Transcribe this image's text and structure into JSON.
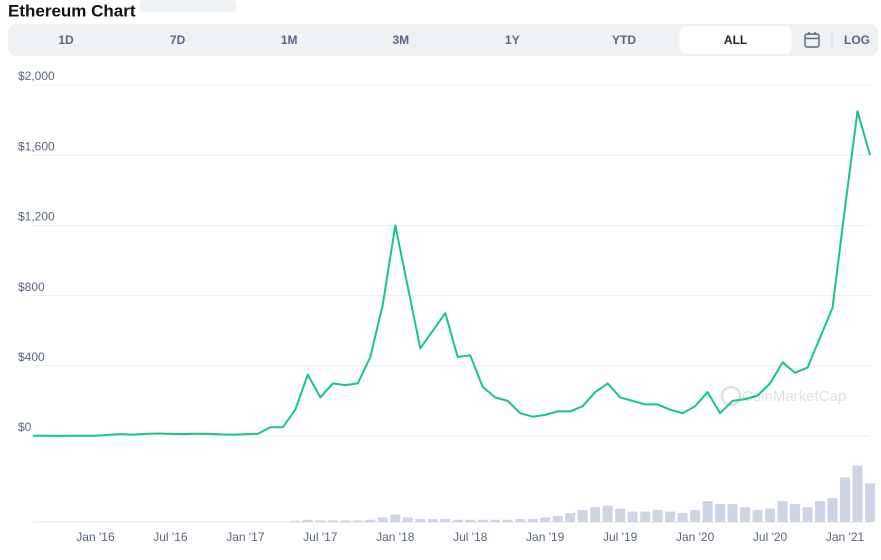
{
  "chart_data": {
    "type": "line",
    "title": "Ethereum Chart",
    "toolbar": {
      "buttons": [
        "1D",
        "7D",
        "1M",
        "3M",
        "1Y",
        "YTD",
        "ALL"
      ],
      "selected": 6,
      "log": "LOG"
    },
    "watermark": "CoinMarketCap",
    "x": [
      "2015-08",
      "2015-09",
      "2015-10",
      "2015-11",
      "2015-12",
      "2016-01",
      "2016-02",
      "2016-03",
      "2016-04",
      "2016-05",
      "2016-06",
      "2016-07",
      "2016-08",
      "2016-09",
      "2016-10",
      "2016-11",
      "2016-12",
      "2017-01",
      "2017-02",
      "2017-03",
      "2017-04",
      "2017-05",
      "2017-06",
      "2017-07",
      "2017-08",
      "2017-09",
      "2017-10",
      "2017-11",
      "2017-12",
      "2018-01",
      "2018-02",
      "2018-03",
      "2018-04",
      "2018-05",
      "2018-06",
      "2018-07",
      "2018-08",
      "2018-09",
      "2018-10",
      "2018-11",
      "2018-12",
      "2019-01",
      "2019-02",
      "2019-03",
      "2019-04",
      "2019-05",
      "2019-06",
      "2019-07",
      "2019-08",
      "2019-09",
      "2019-10",
      "2019-11",
      "2019-12",
      "2020-01",
      "2020-02",
      "2020-03",
      "2020-04",
      "2020-05",
      "2020-06",
      "2020-07",
      "2020-08",
      "2020-09",
      "2020-10",
      "2020-11",
      "2020-12",
      "2021-01",
      "2021-02",
      "2021-03"
    ],
    "series": [
      {
        "color": "#16c784",
        "values": [
          1,
          1,
          0.5,
          1,
          1,
          1,
          6,
          11,
          8,
          12,
          14,
          12,
          11,
          13,
          12,
          9,
          8,
          10,
          13,
          50,
          50,
          150,
          350,
          220,
          300,
          290,
          300,
          450,
          750,
          1200,
          850,
          500,
          600,
          700,
          450,
          460,
          280,
          220,
          200,
          130,
          110,
          120,
          140,
          140,
          170,
          250,
          300,
          220,
          200,
          180,
          180,
          150,
          130,
          170,
          250,
          130,
          200,
          210,
          230,
          300,
          420,
          360,
          390,
          560,
          730,
          1300,
          1850,
          1600
        ]
      }
    ],
    "volume": {
      "color": "#cfd3e6",
      "values": [
        0.01,
        0.01,
        0.01,
        0.01,
        0.01,
        0.02,
        0.05,
        0.1,
        0.05,
        0.05,
        0.1,
        0.08,
        0.05,
        0.05,
        0.03,
        0.03,
        0.03,
        0.03,
        0.05,
        0.2,
        0.2,
        0.8,
        1.5,
        1,
        1,
        1,
        1,
        1.5,
        3,
        5,
        3,
        2,
        2,
        2,
        1.5,
        1.5,
        1.5,
        1.5,
        1.5,
        2,
        2,
        3,
        4,
        6,
        8,
        10,
        11,
        9,
        7,
        7,
        8,
        7,
        6,
        8,
        14,
        12,
        12,
        10,
        8,
        9,
        14,
        12,
        10,
        14,
        16,
        30,
        38,
        26
      ]
    },
    "volume_ylim": [
      0,
      45
    ],
    "xlim": [
      "2015-08",
      "2021-03"
    ],
    "ylim": [
      0,
      2000
    ],
    "yticks": [
      {
        "value": 0,
        "label": "$0"
      },
      {
        "value": 400,
        "label": "$400"
      },
      {
        "value": 800,
        "label": "$800"
      },
      {
        "value": 1200,
        "label": "$1,200"
      },
      {
        "value": 1600,
        "label": "$1,600"
      },
      {
        "value": 2000,
        "label": "$2,000"
      }
    ],
    "xticks": [
      {
        "value": "2016-01",
        "label": "Jan '16"
      },
      {
        "value": "2016-07",
        "label": "Jul '16"
      },
      {
        "value": "2017-01",
        "label": "Jan '17"
      },
      {
        "value": "2017-07",
        "label": "Jul '17"
      },
      {
        "value": "2018-01",
        "label": "Jan '18"
      },
      {
        "value": "2018-07",
        "label": "Jul '18"
      },
      {
        "value": "2019-01",
        "label": "Jan '19"
      },
      {
        "value": "2019-07",
        "label": "Jul '19"
      },
      {
        "value": "2020-01",
        "label": "Jan '20"
      },
      {
        "value": "2020-07",
        "label": "Jul '20"
      },
      {
        "value": "2021-01",
        "label": "Jan '21"
      }
    ],
    "grid": true
  }
}
